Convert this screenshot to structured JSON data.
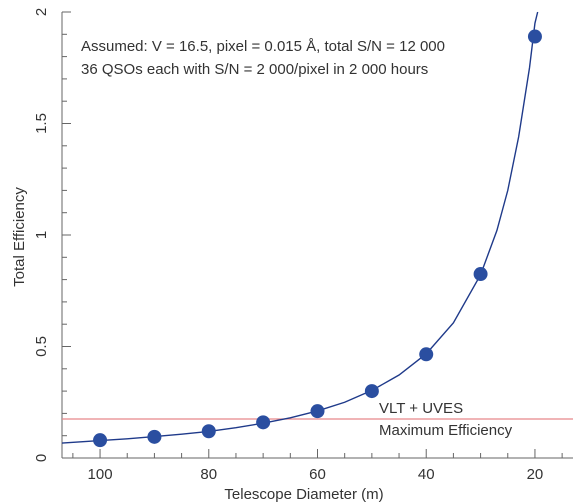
{
  "chart_data": {
    "type": "scatter",
    "title": "",
    "xlabel": "Telescope Diameter (m)",
    "ylabel": "Total Efficiency",
    "xlim": [
      107,
      13
    ],
    "ylim": [
      0,
      2
    ],
    "x_reversed": true,
    "xticks": [
      100,
      80,
      60,
      40,
      20
    ],
    "yticks": [
      0,
      0.5,
      1,
      1.5,
      2
    ],
    "ytick_labels": [
      "0",
      "0.5",
      "1",
      "1.5",
      "2"
    ],
    "grid": false,
    "series": [
      {
        "kind": "points",
        "x": [
          100,
          90,
          80,
          70,
          60,
          50,
          40,
          30,
          20
        ],
        "y": [
          0.08,
          0.095,
          0.12,
          0.16,
          0.21,
          0.3,
          0.465,
          0.825,
          1.89
        ],
        "color": "#2a4ea0"
      },
      {
        "kind": "fit-curve",
        "x": [
          107,
          100,
          95,
          90,
          85,
          80,
          75,
          70,
          65,
          60,
          55,
          50,
          45,
          40,
          35,
          30,
          27,
          25,
          23,
          21,
          20,
          19.5
        ],
        "y": [
          0.067,
          0.078,
          0.086,
          0.096,
          0.107,
          0.119,
          0.136,
          0.156,
          0.18,
          0.211,
          0.25,
          0.303,
          0.372,
          0.467,
          0.606,
          0.822,
          1.02,
          1.2,
          1.44,
          1.75,
          1.95,
          2.0
        ],
        "color": "#1f3a8a"
      }
    ],
    "reference_line": {
      "y": 0.175,
      "label_top": "VLT + UVES",
      "label_bottom": "Maximum Efficiency",
      "color": "#e8878a"
    },
    "annotations": [
      "Assumed: V = 16.5, pixel = 0.015 Å, total S/N = 12 000",
      "36 QSOs each with S/N = 2 000/pixel in 2 000 hours"
    ],
    "marker_color": "#2a4ea0",
    "curve_color": "#1f3a8a"
  }
}
